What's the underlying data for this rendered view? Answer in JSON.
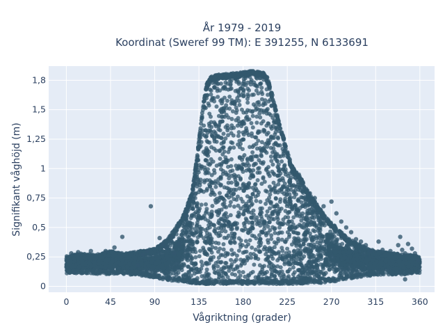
{
  "chart_data": {
    "type": "scatter",
    "title_line1": "År 1979 - 2019",
    "title_line2": "Koordinat (Sweref 99 TM): E 391255, N 6133691",
    "xlabel": "Vågriktning (grader)",
    "ylabel": "Signifikant våghöjd (m)",
    "xlim": [
      -18,
      375
    ],
    "ylim": [
      -0.05,
      1.87
    ],
    "x_ticks": [
      0,
      45,
      90,
      135,
      180,
      225,
      270,
      315,
      360
    ],
    "x_tick_labels": [
      "0",
      "45",
      "90",
      "135",
      "180",
      "225",
      "270",
      "315",
      "360"
    ],
    "y_ticks": [
      0,
      0.25,
      0.5,
      0.75,
      1,
      1.25,
      1.5,
      1.75
    ],
    "y_tick_labels": [
      "0",
      "0,25",
      "0,5",
      "0,75",
      "1",
      "1,25",
      "1,5",
      "1,8"
    ],
    "grid": true,
    "plot_background": "#e5ecf6",
    "marker_color": "#33586e",
    "envelope": {
      "description_units": "direction in degrees, height in metres",
      "upper": [
        [
          0,
          0.26
        ],
        [
          15,
          0.28
        ],
        [
          30,
          0.27
        ],
        [
          45,
          0.3
        ],
        [
          60,
          0.28
        ],
        [
          75,
          0.3
        ],
        [
          90,
          0.32
        ],
        [
          100,
          0.38
        ],
        [
          110,
          0.48
        ],
        [
          120,
          0.62
        ],
        [
          128,
          0.8
        ],
        [
          133,
          1.1
        ],
        [
          137,
          1.38
        ],
        [
          140,
          1.58
        ],
        [
          143,
          1.72
        ],
        [
          147,
          1.78
        ],
        [
          155,
          1.8
        ],
        [
          170,
          1.81
        ],
        [
          180,
          1.82
        ],
        [
          190,
          1.83
        ],
        [
          200,
          1.82
        ],
        [
          205,
          1.77
        ],
        [
          210,
          1.62
        ],
        [
          215,
          1.45
        ],
        [
          220,
          1.3
        ],
        [
          225,
          1.15
        ],
        [
          230,
          1.02
        ],
        [
          237,
          0.95
        ],
        [
          245,
          0.82
        ],
        [
          255,
          0.7
        ],
        [
          265,
          0.58
        ],
        [
          275,
          0.5
        ],
        [
          285,
          0.42
        ],
        [
          295,
          0.37
        ],
        [
          305,
          0.33
        ],
        [
          315,
          0.3
        ],
        [
          325,
          0.29
        ],
        [
          335,
          0.28
        ],
        [
          345,
          0.27
        ],
        [
          360,
          0.26
        ]
      ],
      "lower": [
        [
          0,
          0.11
        ],
        [
          20,
          0.11
        ],
        [
          45,
          0.1
        ],
        [
          70,
          0.1
        ],
        [
          90,
          0.07
        ],
        [
          105,
          0.05
        ],
        [
          120,
          0.04
        ],
        [
          135,
          0.02
        ],
        [
          180,
          0.02
        ],
        [
          230,
          0.02
        ],
        [
          260,
          0.03
        ],
        [
          280,
          0.05
        ],
        [
          300,
          0.08
        ],
        [
          320,
          0.1
        ],
        [
          340,
          0.1
        ],
        [
          360,
          0.11
        ]
      ]
    },
    "outliers": [
      [
        86,
        0.68
      ],
      [
        57,
        0.42
      ],
      [
        73,
        0.18
      ],
      [
        78,
        0.27
      ],
      [
        82,
        0.3
      ],
      [
        49,
        0.33
      ],
      [
        40,
        0.3
      ],
      [
        25,
        0.3
      ],
      [
        12,
        0.29
      ],
      [
        5,
        0.28
      ],
      [
        8,
        0.12
      ],
      [
        95,
        0.41
      ],
      [
        98,
        0.36
      ],
      [
        102,
        0.33
      ],
      [
        108,
        0.42
      ],
      [
        115,
        0.36
      ],
      [
        122,
        0.6
      ],
      [
        110,
        0.28
      ],
      [
        112,
        0.1
      ],
      [
        105,
        0.07
      ],
      [
        270,
        0.72
      ],
      [
        275,
        0.62
      ],
      [
        280,
        0.55
      ],
      [
        285,
        0.5
      ],
      [
        290,
        0.46
      ],
      [
        295,
        0.4
      ],
      [
        300,
        0.38
      ],
      [
        305,
        0.35
      ],
      [
        310,
        0.3
      ],
      [
        318,
        0.38
      ],
      [
        322,
        0.31
      ],
      [
        330,
        0.3
      ],
      [
        338,
        0.35
      ],
      [
        340,
        0.42
      ],
      [
        342,
        0.31
      ],
      [
        345,
        0.28
      ],
      [
        348,
        0.36
      ],
      [
        352,
        0.32
      ],
      [
        355,
        0.28
      ],
      [
        358,
        0.22
      ],
      [
        345,
        0.06
      ],
      [
        253,
        0.75
      ],
      [
        262,
        0.68
      ],
      [
        248,
        0.79
      ]
    ]
  }
}
